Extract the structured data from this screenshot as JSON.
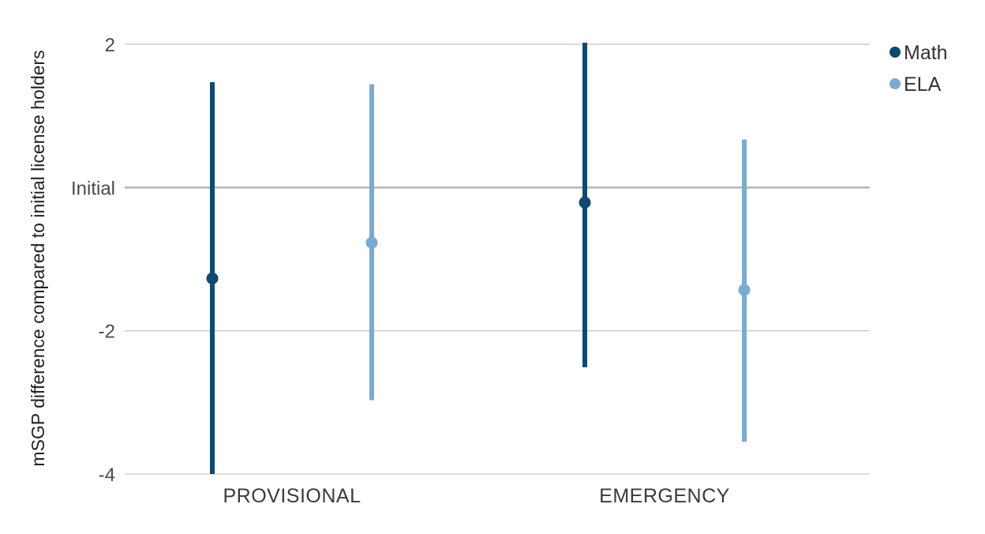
{
  "chart_data": {
    "type": "errorbar",
    "ylabel": "mSGP difference compared to initial license holders",
    "ylim": [
      -4,
      2
    ],
    "yticks": [
      {
        "value": 2,
        "label": "2"
      },
      {
        "value": 0,
        "label": "Initial"
      },
      {
        "value": -2,
        "label": "-2"
      },
      {
        "value": -4,
        "label": "-4"
      }
    ],
    "reference_line": 0,
    "categories": [
      "PROVISIONAL",
      "EMERGENCY"
    ],
    "legend_position": "top-right",
    "series": [
      {
        "name": "Math",
        "color": "#0d4a73",
        "points": [
          {
            "category": "PROVISIONAL",
            "value": -1.27,
            "low": -4.0,
            "high": 1.47
          },
          {
            "category": "EMERGENCY",
            "value": -0.21,
            "low": -2.51,
            "high": 2.02
          }
        ]
      },
      {
        "name": "ELA",
        "color": "#7aabd0",
        "points": [
          {
            "category": "PROVISIONAL",
            "value": -0.77,
            "low": -2.97,
            "high": 1.44
          },
          {
            "category": "EMERGENCY",
            "value": -1.43,
            "low": -3.55,
            "high": 0.67
          }
        ]
      }
    ]
  }
}
